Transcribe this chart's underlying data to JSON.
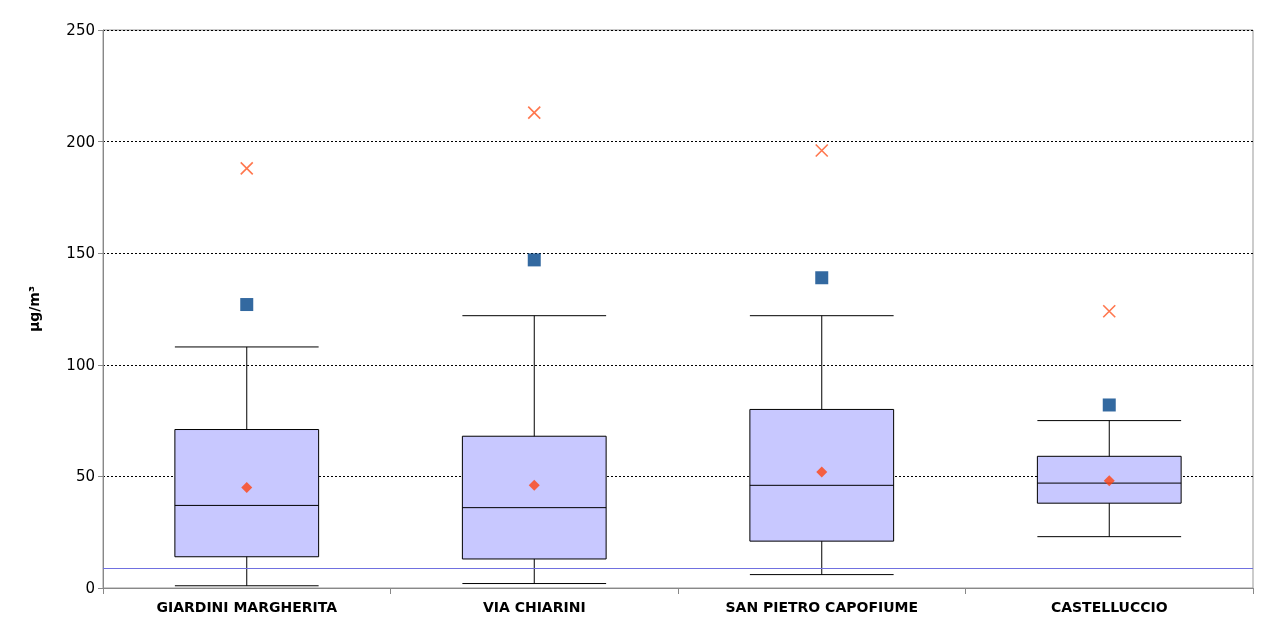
{
  "chart_data": {
    "type": "box",
    "ylabel": "µg/m³",
    "categories": [
      "GIARDINI MARGHERITA",
      "VIA CHIARINI",
      "SAN PIETRO CAPOFIUME",
      "CASTELLUCCIO"
    ],
    "series": [
      {
        "color": "#c8c8ff",
        "boxes": [
          {
            "low": 1,
            "q1": 14,
            "median": 37,
            "q3": 71,
            "high": 108,
            "mean": 45
          },
          {
            "low": 2,
            "q1": 13,
            "median": 36,
            "q3": 68,
            "high": 122,
            "mean": 46
          },
          {
            "low": 6,
            "q1": 21,
            "median": 46,
            "q3": 80,
            "high": 122,
            "mean": 52
          },
          {
            "low": 23,
            "q1": 38,
            "median": 47,
            "q3": 59,
            "high": 75,
            "mean": 48
          }
        ]
      },
      {
        "type": "scatter",
        "marker": "square",
        "color": "#004488",
        "x": [
          "GIARDINI MARGHERITA",
          "VIA CHIARINI",
          "SAN PIETRO CAPOFIUME",
          "CASTELLUCCIO"
        ],
        "values": [
          127,
          147,
          139,
          82
        ]
      },
      {
        "type": "scatter",
        "marker": "cross",
        "color": "#ff5522",
        "x": [
          "GIARDINI MARGHERITA",
          "VIA CHIARINI",
          "SAN PIETRO CAPOFIUME",
          "CASTELLUCCIO"
        ],
        "values": [
          188,
          213,
          196,
          124
        ]
      }
    ],
    "ylim": [
      0,
      250
    ],
    "yticks": [
      0,
      50,
      100,
      150,
      200,
      250
    ],
    "grid": "y",
    "ref_lines": [
      {
        "axis": "y",
        "value": 9,
        "color": "#7070e0",
        "line_style": "solid"
      }
    ]
  }
}
